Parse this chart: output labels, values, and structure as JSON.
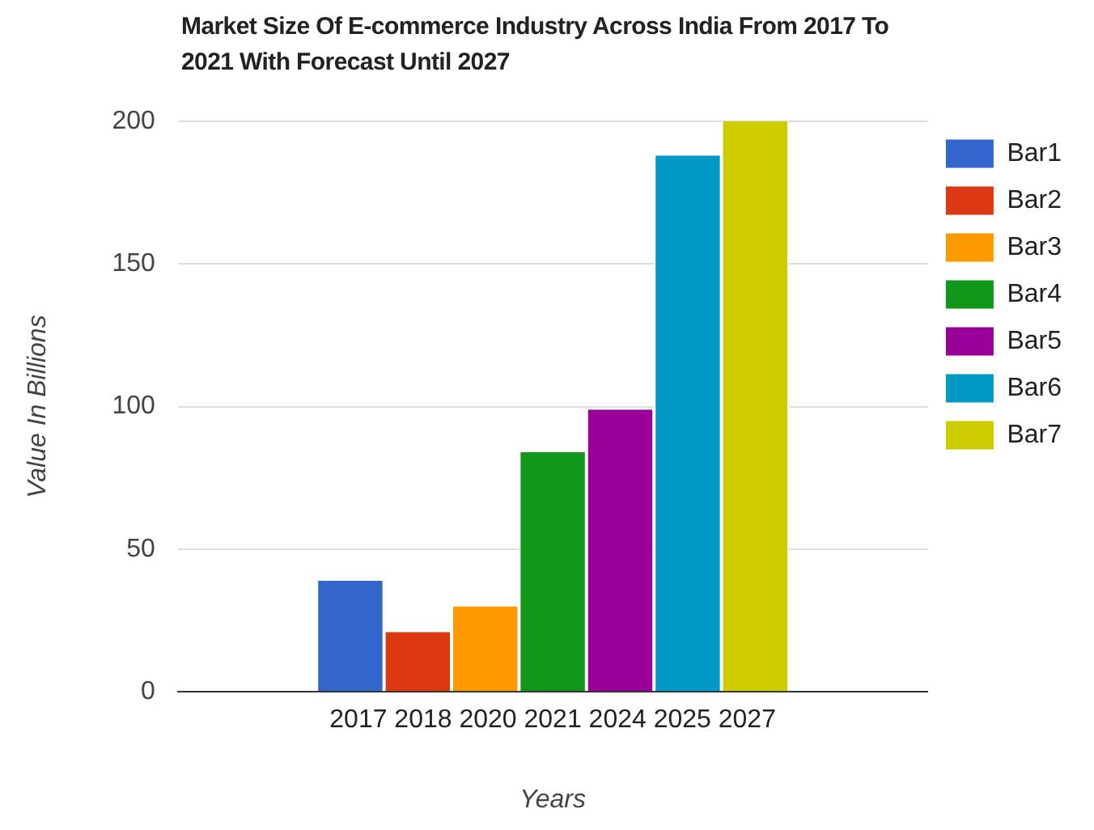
{
  "chart_data": {
    "type": "bar",
    "title": "Market Size Of E-commerce Industry Across India From 2017 To 2021 With Forecast Until 2027",
    "xlabel": "Years",
    "ylabel": "Value In Billions",
    "categories": [
      "2017 2018 2020 2021 2024 2025 2027"
    ],
    "series": [
      {
        "name": "Bar1",
        "color": "#3366cc",
        "values": [
          39
        ]
      },
      {
        "name": "Bar2",
        "color": "#dc3912",
        "values": [
          21
        ]
      },
      {
        "name": "Bar3",
        "color": "#ff9900",
        "values": [
          30
        ]
      },
      {
        "name": "Bar4",
        "color": "#109618",
        "values": [
          84
        ]
      },
      {
        "name": "Bar5",
        "color": "#990099",
        "values": [
          99
        ]
      },
      {
        "name": "Bar6",
        "color": "#0099c6",
        "values": [
          188
        ]
      },
      {
        "name": "Bar7",
        "color": "#cccc00",
        "values": [
          200
        ]
      }
    ],
    "ylim": [
      0,
      200
    ],
    "yticks": [
      0,
      50,
      100,
      150,
      200
    ],
    "grid": "y",
    "legend": "right"
  }
}
